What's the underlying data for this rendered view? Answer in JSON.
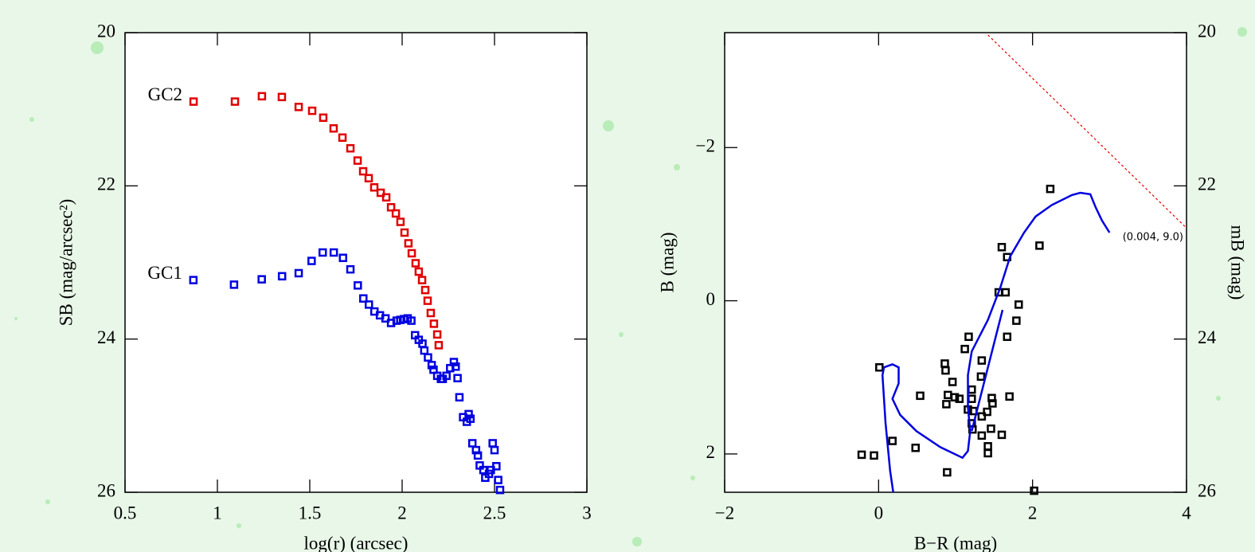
{
  "chart_data": [
    {
      "type": "scatter",
      "xlabel": "log(r) (arcsec)",
      "ylabel": "SB (mag/arcsec²)",
      "xlim": [
        0.5,
        3
      ],
      "ylim": [
        26,
        20
      ],
      "xticks": [
        0.5,
        1,
        1.5,
        2,
        2.5,
        3
      ],
      "yticks": [
        20,
        22,
        24,
        26
      ],
      "series": [
        {
          "name": "GC2",
          "color": "#e00000",
          "style": "markers",
          "x": [
            0.871,
            1.095,
            1.241,
            1.349,
            1.44,
            1.513,
            1.573,
            1.629,
            1.677,
            1.72,
            1.759,
            1.789,
            1.819,
            1.849,
            1.884,
            1.914,
            1.94,
            1.966,
            1.991,
            2.013,
            2.034,
            2.052,
            2.073,
            2.09,
            2.108,
            2.125,
            2.138,
            2.155,
            2.172,
            2.19,
            2.198
          ],
          "values": [
            20.9,
            20.9,
            20.83,
            20.84,
            20.97,
            21.02,
            21.11,
            21.25,
            21.37,
            21.51,
            21.67,
            21.81,
            21.9,
            22.02,
            22.09,
            22.15,
            22.28,
            22.36,
            22.47,
            22.61,
            22.75,
            22.88,
            23.01,
            23.12,
            23.23,
            23.36,
            23.5,
            23.66,
            23.8,
            23.94,
            24.08
          ]
        },
        {
          "name": "GC1",
          "color": "#0000e0",
          "style": "markers",
          "x": [
            0.87,
            1.09,
            1.24,
            1.35,
            1.44,
            1.51,
            1.57,
            1.63,
            1.68,
            1.72,
            1.76,
            1.79,
            1.82,
            1.85,
            1.88,
            1.91,
            1.94,
            1.97,
            1.99,
            2.01,
            2.03,
            2.05,
            2.07,
            2.09,
            2.11,
            2.12,
            2.14,
            2.16,
            2.17,
            2.19,
            2.21,
            2.22,
            2.24,
            2.26,
            2.28,
            2.29,
            2.3,
            2.31,
            2.33,
            2.35,
            2.36,
            2.37,
            2.38,
            2.4,
            2.41,
            2.42,
            2.44,
            2.45,
            2.47,
            2.48,
            2.49,
            2.5,
            2.51,
            2.52,
            2.53
          ],
          "values": [
            23.23,
            23.29,
            23.22,
            23.18,
            23.14,
            22.98,
            22.87,
            22.87,
            22.94,
            23.09,
            23.3,
            23.47,
            23.55,
            23.64,
            23.69,
            23.73,
            23.79,
            23.76,
            23.75,
            23.74,
            23.73,
            23.76,
            23.95,
            24.01,
            24.06,
            24.15,
            24.24,
            24.34,
            24.4,
            24.48,
            24.52,
            24.52,
            24.48,
            24.38,
            24.3,
            24.36,
            24.51,
            24.76,
            25.02,
            25.08,
            24.98,
            25.04,
            25.36,
            25.45,
            25.52,
            25.65,
            25.71,
            25.81,
            25.76,
            25.71,
            25.36,
            25.45,
            25.66,
            25.84,
            25.97
          ]
        }
      ]
    },
    {
      "type": "scatter",
      "xlabel": "B−R (mag)",
      "ylabel": "B (mag)",
      "y2label": "mB (mag)",
      "xlim": [
        -2,
        4
      ],
      "ylim": [
        2.5,
        -3.5
      ],
      "y2lim": [
        26,
        20
      ],
      "xticks": [
        {
          "value": -2,
          "label": "−2"
        },
        0,
        2,
        4
      ],
      "yticks": [
        {
          "value": -2,
          "label": "−2"
        },
        0,
        2
      ],
      "y2ticks": [
        20,
        22,
        24,
        26
      ],
      "series": [
        {
          "color": "#000000",
          "style": "markers",
          "x": [
            2.23,
            1.6,
            1.67,
            2.09,
            1.56,
            1.65,
            1.82,
            1.79,
            1.17,
            1.67,
            1.12,
            0.01,
            0.86,
            0.87,
            1.34,
            0.96,
            1.33,
            1.21,
            0.54,
            0.9,
            0.99,
            1.05,
            0.88,
            1.21,
            1.47,
            1.7,
            1.48,
            1.16,
            1.23,
            1.41,
            1.34,
            1.21,
            1.22,
            1.46,
            1.34,
            1.6,
            0.18,
            0.48,
            1.42,
            1.42,
            -0.22,
            -0.06,
            0.89,
            2.02
          ],
          "values": [
            -1.46,
            -0.7,
            -0.57,
            -0.72,
            -0.11,
            -0.11,
            0.05,
            0.26,
            0.47,
            0.47,
            0.63,
            0.87,
            0.82,
            0.91,
            0.78,
            1.06,
            0.99,
            1.16,
            1.24,
            1.23,
            1.26,
            1.28,
            1.35,
            1.28,
            1.27,
            1.25,
            1.34,
            1.42,
            1.44,
            1.45,
            1.51,
            1.6,
            1.68,
            1.67,
            1.76,
            1.75,
            1.83,
            1.92,
            1.9,
            1.99,
            2.01,
            2.02,
            2.24,
            2.48
          ]
        },
        {
          "color": "#0000e0",
          "style": "line",
          "x": [
            0.19,
            0.15,
            0.09,
            0.05,
            0.07,
            0.18,
            0.26,
            0.26,
            0.18,
            0.28,
            0.49,
            0.8,
            1.09,
            1.16,
            1.19,
            1.16,
            1.16,
            1.21,
            1.42,
            1.58,
            1.71,
            1.89,
            2.04,
            2.25,
            2.51,
            2.62,
            2.75,
            2.82,
            2.9,
            3.0
          ],
          "values": [
            2.5,
            2.22,
            1.59,
            0.97,
            0.87,
            0.83,
            0.87,
            1.08,
            1.28,
            1.49,
            1.7,
            1.91,
            2.05,
            1.96,
            1.7,
            1.39,
            0.97,
            0.66,
            0.25,
            -0.17,
            -0.58,
            -0.89,
            -1.1,
            -1.25,
            -1.38,
            -1.41,
            -1.39,
            -1.22,
            -1.05,
            -0.89
          ]
        },
        {
          "color": "#0000e0",
          "style": "line",
          "x": [
            1.21,
            1.61
          ],
          "values": [
            1.7,
            0.12
          ]
        },
        {
          "color": "#e00000",
          "style": "dashed",
          "x": [
            1.42,
            3.99
          ],
          "values": [
            -3.47,
            -0.96
          ]
        }
      ],
      "annotations": [
        "(0.004, 9.0)"
      ]
    }
  ]
}
